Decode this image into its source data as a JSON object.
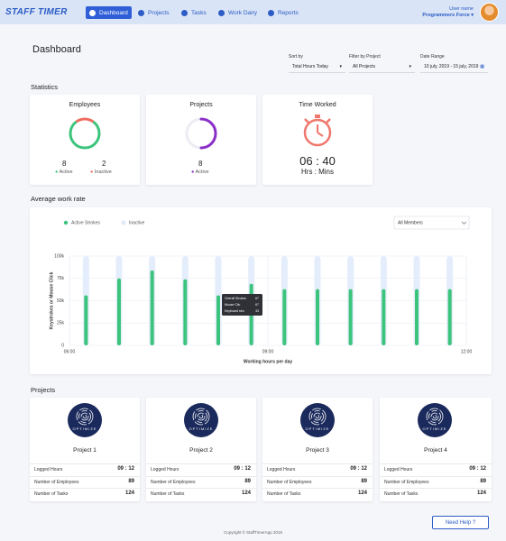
{
  "nav": {
    "logo": "STAFF TIMER",
    "items": [
      "Dashboard",
      "Projects",
      "Tasks",
      "Work Dairy",
      "Reports"
    ],
    "user_label": "User name",
    "user_org": "Programmers Force"
  },
  "page_title": "Dashboard",
  "filters": [
    {
      "label": "Sort by",
      "value": "Total Hours Today"
    },
    {
      "label": "Filter by Project",
      "value": "All Projects"
    },
    {
      "label": "Date Range",
      "value": "10 july, 2019 - 15 july, 2019"
    }
  ],
  "statistics": {
    "title": "Statistics",
    "employees": {
      "title": "Employees",
      "active": 8,
      "active_label": "Active",
      "inactive": 2,
      "inactive_label": "Inactive"
    },
    "projects": {
      "title": "Projects",
      "active": 8,
      "active_label": "Active"
    },
    "time_worked": {
      "title": "Time Worked",
      "value": "06 : 40",
      "unit": "Hrs : Mins"
    }
  },
  "chart_data": {
    "type": "bar",
    "title": "Average work rate",
    "member_filter": "All Members",
    "x_label": "Working hours per day",
    "y_label": "Keystrokes or Mouse Click",
    "x": [
      6.25,
      6.75,
      7.25,
      7.75,
      8.25,
      8.75,
      9.25,
      9.75,
      10.25,
      10.75,
      11.25,
      11.75
    ],
    "series": [
      {
        "name": "Active Strokes",
        "color": "#3cc47c",
        "values": [
          56000,
          75000,
          84000,
          74000,
          56000,
          69000,
          63000,
          63000,
          63000,
          63000,
          63000,
          63000
        ]
      },
      {
        "name": "Inactive",
        "color": "#e4edfb",
        "values": [
          100000,
          100000,
          100000,
          100000,
          100000,
          100000,
          100000,
          100000,
          100000,
          100000,
          100000,
          100000
        ]
      }
    ],
    "xlim": [
      6,
      12
    ],
    "xticks": [
      {
        "value": 6,
        "label": "06:00"
      },
      {
        "value": 9,
        "label": "09:00"
      },
      {
        "value": 12,
        "label": "12:00"
      }
    ],
    "ylim": [
      0,
      100000
    ],
    "yticks": [
      0,
      {
        "value": 25000,
        "label": "25k"
      },
      {
        "value": 50000,
        "label": "50k"
      },
      {
        "value": 75000,
        "label": "75k"
      },
      {
        "value": 100000,
        "label": "100k"
      }
    ],
    "grid": true,
    "tooltip": [
      {
        "label": "Overall Strokes",
        "value": 67
      },
      {
        "label": "Mouse Clic",
        "value": 67
      },
      {
        "label": "Keyboard stro",
        "value": 33
      }
    ]
  },
  "projects": {
    "title": "Projects",
    "cards": [
      {
        "logo": "OPTIMIZE",
        "name": "Project 1",
        "rows": [
          [
            "Logged Hours",
            "09 : 12"
          ],
          [
            "Number of Employees",
            89
          ],
          [
            "Number of Tasks",
            124
          ]
        ]
      },
      {
        "logo": "OPTIMIZE",
        "name": "Project 2",
        "rows": [
          [
            "Logged Hours",
            "09 : 12"
          ],
          [
            "Number of Employees",
            89
          ],
          [
            "Number of Tasks",
            124
          ]
        ]
      },
      {
        "logo": "OPTIMIZE",
        "name": "Project 3",
        "rows": [
          [
            "Logged Hours",
            "09 : 12"
          ],
          [
            "Number of Employees",
            89
          ],
          [
            "Number of Tasks",
            124
          ]
        ]
      },
      {
        "logo": "OPTIMIZE",
        "name": "Project 4",
        "rows": [
          [
            "Logged Hours",
            "09 : 12"
          ],
          [
            "Number of Employees",
            89
          ],
          [
            "Number of Tasks",
            124
          ]
        ]
      }
    ]
  },
  "footer": "Copyright © StaffTimerApp 2019",
  "help": "Need Help ?"
}
